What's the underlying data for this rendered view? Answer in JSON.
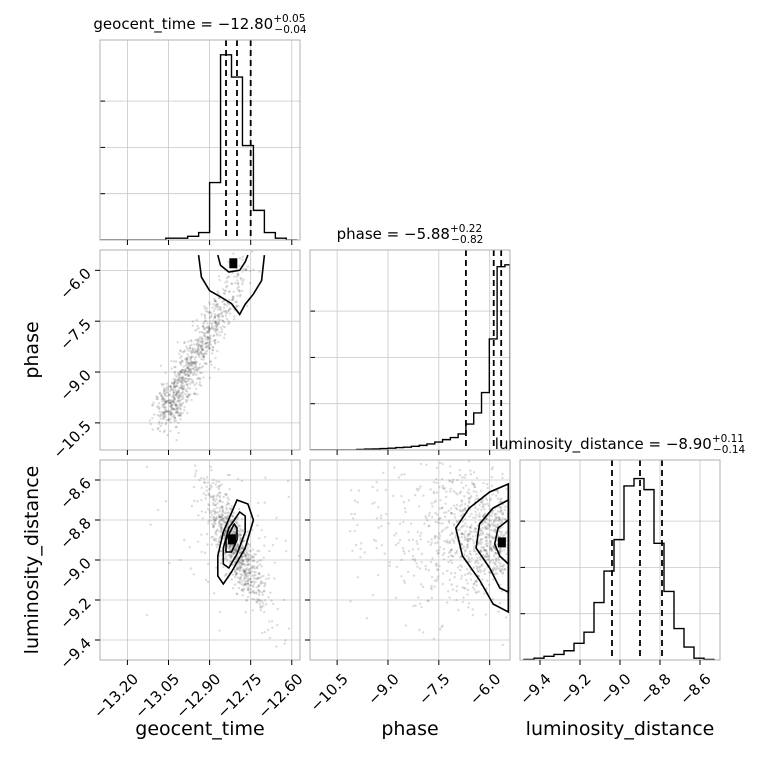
{
  "chart_data": {
    "type": "corner",
    "parameters": [
      {
        "name": "geocent_time",
        "axis_label": "geocent_time",
        "title": "geocent_time = −12.80",
        "median_text": "−12.80",
        "plus": "+0.05",
        "minus": "−0.04",
        "median": -12.8,
        "q16": -12.84,
        "q84": -12.75,
        "range": [
          -13.3,
          -12.57
        ],
        "ticks": [
          -13.2,
          -13.05,
          -12.9,
          -12.75,
          -12.6
        ],
        "tick_labels": [
          "−13.20",
          "−13.05",
          "−12.90",
          "−12.75",
          "−12.60"
        ],
        "hist_edges": [
          -13.3,
          -13.26,
          -13.22,
          -13.18,
          -13.14,
          -13.1,
          -13.06,
          -13.02,
          -12.98,
          -12.94,
          -12.9,
          -12.86,
          -12.82,
          -12.78,
          -12.74,
          -12.7,
          -12.66,
          -12.62,
          -12.58
        ],
        "hist_counts": [
          0.0,
          0.0,
          0.0,
          0.0,
          0.0,
          0.0,
          0.01,
          0.01,
          0.02,
          0.04,
          0.31,
          1.0,
          0.88,
          0.51,
          0.16,
          0.04,
          0.01,
          0.0
        ]
      },
      {
        "name": "phase",
        "axis_label": "phase",
        "title": "phase = −5.88",
        "median_text": "−5.88",
        "plus": "+0.22",
        "minus": "−0.82",
        "median": -5.88,
        "q16": -6.7,
        "q84": -5.66,
        "range": [
          -11.3,
          -5.4
        ],
        "ticks": [
          -10.5,
          -9.0,
          -7.5,
          -6.0
        ],
        "tick_labels": [
          "−10.5",
          "−9.0",
          "−7.5",
          "−6.0"
        ],
        "hist_edges": [
          -11.3,
          -11.07,
          -10.84,
          -10.61,
          -10.38,
          -10.15,
          -9.92,
          -9.69,
          -9.46,
          -9.23,
          -9.0,
          -8.77,
          -8.54,
          -8.31,
          -8.08,
          -7.85,
          -7.62,
          -7.39,
          -7.16,
          -6.93,
          -6.7,
          -6.47,
          -6.24,
          -6.01,
          -5.78,
          -5.55,
          -5.4
        ],
        "hist_counts": [
          0.0,
          0.0,
          0.0,
          0.0,
          0.0,
          0.0,
          0.003,
          0.005,
          0.006,
          0.008,
          0.01,
          0.013,
          0.015,
          0.02,
          0.025,
          0.033,
          0.043,
          0.056,
          0.067,
          0.087,
          0.14,
          0.2,
          0.31,
          0.6,
          0.99,
          1.0
        ]
      },
      {
        "name": "luminosity_distance",
        "axis_label": "luminosity_distance",
        "title": "luminosity_distance = −8.90",
        "median_text": "−8.90",
        "plus": "+0.11",
        "minus": "−0.14",
        "median": -8.9,
        "q16": -9.04,
        "q84": -8.79,
        "range": [
          -9.5,
          -8.5
        ],
        "ticks": [
          -9.4,
          -9.2,
          -9.0,
          -8.8,
          -8.6
        ],
        "tick_labels": [
          "−9.4",
          "−9.2",
          "−9.0",
          "−8.8",
          "−8.6"
        ],
        "hist_edges": [
          -9.48,
          -9.43,
          -9.38,
          -9.33,
          -9.28,
          -9.23,
          -9.18,
          -9.13,
          -9.08,
          -9.03,
          -8.98,
          -8.93,
          -8.88,
          -8.83,
          -8.78,
          -8.73,
          -8.68,
          -8.63,
          -8.58,
          -8.53
        ],
        "hist_counts": [
          0.003,
          0.01,
          0.02,
          0.03,
          0.05,
          0.09,
          0.15,
          0.31,
          0.48,
          0.65,
          0.94,
          0.98,
          0.92,
          0.63,
          0.37,
          0.17,
          0.07,
          0.01,
          0.003
        ]
      }
    ],
    "pairs": [
      {
        "x": "geocent_time",
        "y": "phase",
        "scatter_center": [
          -12.76,
          -7.1
        ],
        "contours": [
          [
            [
              -12.94,
              -5.55
            ],
            [
              -12.93,
              -6.2
            ],
            [
              -12.9,
              -6.6
            ],
            [
              -12.86,
              -6.78
            ],
            [
              -12.82,
              -6.98
            ],
            [
              -12.79,
              -7.3
            ],
            [
              -12.77,
              -7.0
            ],
            [
              -12.74,
              -6.7
            ],
            [
              -12.71,
              -6.3
            ],
            [
              -12.7,
              -5.55
            ]
          ],
          [
            [
              -12.87,
              -5.55
            ],
            [
              -12.86,
              -5.85
            ],
            [
              -12.83,
              -6.05
            ],
            [
              -12.79,
              -6.0
            ],
            [
              -12.77,
              -5.75
            ],
            [
              -12.76,
              -5.55
            ]
          ]
        ]
      },
      {
        "x": "geocent_time",
        "y": "luminosity_distance",
        "scatter_center": [
          -12.81,
          -8.92
        ],
        "contours": [
          [
            [
              -12.8,
              -8.7
            ],
            [
              -12.76,
              -8.72
            ],
            [
              -12.74,
              -8.8
            ],
            [
              -12.77,
              -8.94
            ],
            [
              -12.82,
              -9.06
            ],
            [
              -12.85,
              -9.12
            ],
            [
              -12.87,
              -9.08
            ],
            [
              -12.87,
              -8.98
            ],
            [
              -12.85,
              -8.86
            ]
          ],
          [
            [
              -12.79,
              -8.76
            ],
            [
              -12.77,
              -8.78
            ],
            [
              -12.77,
              -8.86
            ],
            [
              -12.8,
              -8.97
            ],
            [
              -12.83,
              -9.04
            ],
            [
              -12.85,
              -9.02
            ],
            [
              -12.85,
              -8.94
            ],
            [
              -12.83,
              -8.84
            ]
          ],
          [
            [
              -12.81,
              -8.82
            ],
            [
              -12.8,
              -8.84
            ],
            [
              -12.8,
              -8.9
            ],
            [
              -12.82,
              -8.96
            ],
            [
              -12.84,
              -8.96
            ],
            [
              -12.84,
              -8.9
            ]
          ]
        ]
      },
      {
        "x": "phase",
        "y": "luminosity_distance",
        "scatter_center": [
          -6.4,
          -8.88
        ],
        "contours": [
          [
            [
              -5.45,
              -8.62
            ],
            [
              -6.0,
              -8.66
            ],
            [
              -6.6,
              -8.74
            ],
            [
              -7.0,
              -8.84
            ],
            [
              -6.8,
              -8.98
            ],
            [
              -6.3,
              -9.1
            ],
            [
              -5.9,
              -9.22
            ],
            [
              -5.45,
              -9.26
            ]
          ],
          [
            [
              -5.45,
              -8.7
            ],
            [
              -5.9,
              -8.74
            ],
            [
              -6.3,
              -8.82
            ],
            [
              -6.4,
              -8.94
            ],
            [
              -6.0,
              -9.04
            ],
            [
              -5.7,
              -9.14
            ],
            [
              -5.45,
              -9.16
            ]
          ],
          [
            [
              -5.45,
              -8.8
            ],
            [
              -5.75,
              -8.84
            ],
            [
              -5.85,
              -8.92
            ],
            [
              -5.7,
              -8.98
            ],
            [
              -5.45,
              -9.02
            ]
          ]
        ]
      }
    ]
  }
}
